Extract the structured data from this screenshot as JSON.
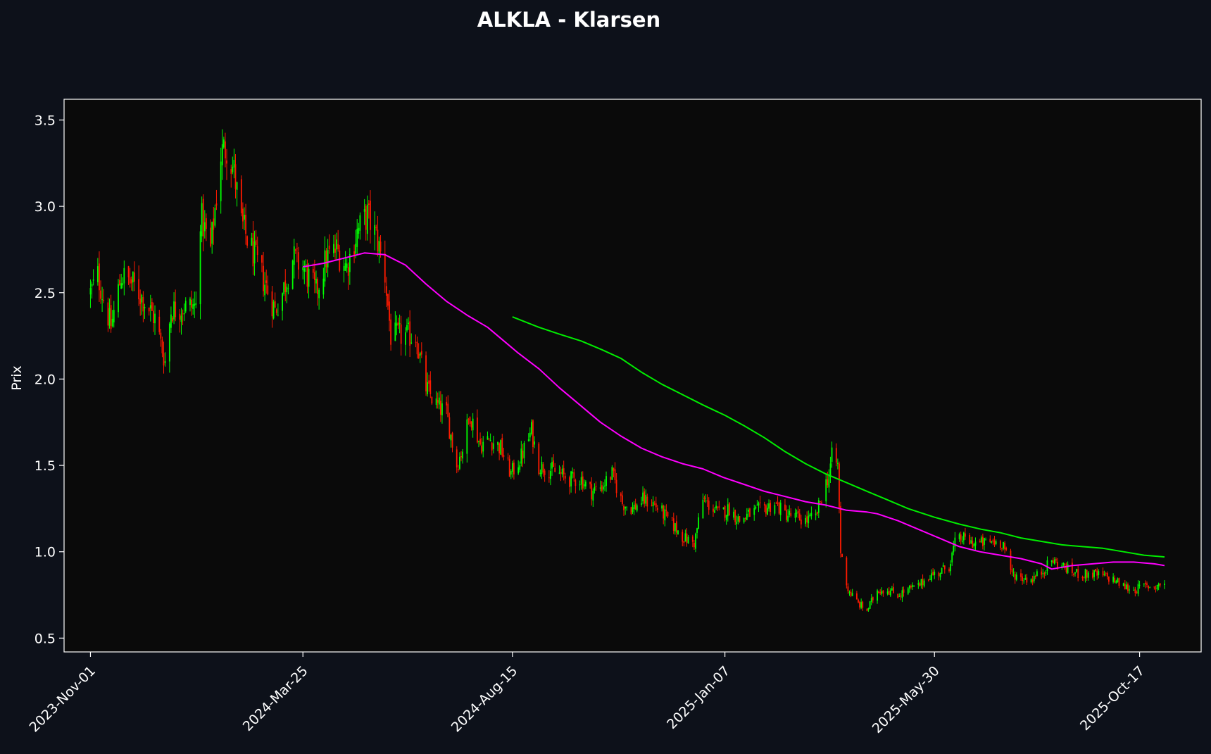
{
  "colors": {
    "page_background": "#0d111a",
    "plot_background": "#0a0a0a",
    "frame": "#ffffff",
    "text": "#ffffff",
    "candle_up": "#00ff00",
    "candle_down": "#ff1a00",
    "ma_fast": "#ff00ff",
    "ma_slow": "#00ee00"
  },
  "chart_data": {
    "type": "candlestick",
    "title": "ALKLA - Klarsen",
    "xlabel": "",
    "ylabel": "Prix",
    "x_range": [
      "2023-10-14",
      "2025-11-28"
    ],
    "ylim": [
      0.42,
      3.62
    ],
    "y_ticks": [
      0.5,
      1.0,
      1.5,
      2.0,
      2.5,
      3.0,
      3.5
    ],
    "y_tick_labels": [
      "0.5",
      "1.0",
      "1.5",
      "2.0",
      "2.5",
      "3.0",
      "3.5"
    ],
    "x_ticks": [
      "2023-11-01",
      "2024-03-25",
      "2024-08-15",
      "2025-01-07",
      "2025-05-30",
      "2025-10-17"
    ],
    "x_tick_labels": [
      "2023-Nov-01",
      "2024-Mar-25",
      "2024-Aug-15",
      "2025-Jan-07",
      "2025-May-30",
      "2025-Oct-17"
    ],
    "grid": false,
    "legend": "none",
    "candles": {
      "trading_days": "Mon-Fri",
      "date_range": [
        "2023-11-01",
        "2025-11-03"
      ],
      "approx_close_path": [
        [
          "2023-11-01",
          2.5
        ],
        [
          "2023-11-06",
          2.6
        ],
        [
          "2023-11-15",
          2.3
        ],
        [
          "2023-11-22",
          2.6
        ],
        [
          "2023-11-30",
          2.55
        ],
        [
          "2023-12-08",
          2.45
        ],
        [
          "2023-12-15",
          2.35
        ],
        [
          "2023-12-22",
          2.1
        ],
        [
          "2023-12-26",
          2.4
        ],
        [
          "2024-01-05",
          2.42
        ],
        [
          "2024-01-12",
          2.42
        ],
        [
          "2024-01-15",
          2.95
        ],
        [
          "2024-01-22",
          2.75
        ],
        [
          "2024-01-29",
          3.3
        ],
        [
          "2024-02-02",
          3.35
        ],
        [
          "2024-02-07",
          3.2
        ],
        [
          "2024-02-12",
          2.9
        ],
        [
          "2024-02-19",
          2.75
        ],
        [
          "2024-02-26",
          2.6
        ],
        [
          "2024-03-06",
          2.4
        ],
        [
          "2024-03-11",
          2.5
        ],
        [
          "2024-03-18",
          2.7
        ],
        [
          "2024-03-25",
          2.65
        ],
        [
          "2024-04-03",
          2.5
        ],
        [
          "2024-04-10",
          2.7
        ],
        [
          "2024-04-17",
          2.75
        ],
        [
          "2024-04-24",
          2.65
        ],
        [
          "2024-05-01",
          2.85
        ],
        [
          "2024-05-08",
          2.95
        ],
        [
          "2024-05-15",
          2.8
        ],
        [
          "2024-05-20",
          2.6
        ],
        [
          "2024-05-24",
          2.25
        ],
        [
          "2024-06-03",
          2.25
        ],
        [
          "2024-06-10",
          2.25
        ],
        [
          "2024-06-17",
          1.95
        ],
        [
          "2024-06-24",
          1.85
        ],
        [
          "2024-07-01",
          1.8
        ],
        [
          "2024-07-08",
          1.5
        ],
        [
          "2024-07-12",
          1.6
        ],
        [
          "2024-07-17",
          1.8
        ],
        [
          "2024-07-24",
          1.62
        ],
        [
          "2024-07-31",
          1.65
        ],
        [
          "2024-08-07",
          1.6
        ],
        [
          "2024-08-14",
          1.45
        ],
        [
          "2024-08-21",
          1.55
        ],
        [
          "2024-08-28",
          1.7
        ],
        [
          "2024-09-02",
          1.5
        ],
        [
          "2024-09-09",
          1.48
        ],
        [
          "2024-09-16",
          1.45
        ],
        [
          "2024-09-23",
          1.42
        ],
        [
          "2024-10-01",
          1.42
        ],
        [
          "2024-10-08",
          1.35
        ],
        [
          "2024-10-15",
          1.38
        ],
        [
          "2024-10-22",
          1.45
        ],
        [
          "2024-10-29",
          1.28
        ],
        [
          "2024-11-05",
          1.25
        ],
        [
          "2024-11-12",
          1.3
        ],
        [
          "2024-11-19",
          1.28
        ],
        [
          "2024-11-26",
          1.22
        ],
        [
          "2024-12-03",
          1.15
        ],
        [
          "2024-12-10",
          1.08
        ],
        [
          "2024-12-17",
          1.05
        ],
        [
          "2024-12-23",
          1.3
        ],
        [
          "2025-01-03",
          1.22
        ],
        [
          "2025-01-10",
          1.25
        ],
        [
          "2025-01-17",
          1.18
        ],
        [
          "2025-01-24",
          1.22
        ],
        [
          "2025-02-03",
          1.25
        ],
        [
          "2025-02-10",
          1.28
        ],
        [
          "2025-02-17",
          1.22
        ],
        [
          "2025-02-24",
          1.2
        ],
        [
          "2025-03-03",
          1.18
        ],
        [
          "2025-03-10",
          1.2
        ],
        [
          "2025-03-14",
          1.32
        ],
        [
          "2025-03-19",
          1.45
        ],
        [
          "2025-03-21",
          1.55
        ],
        [
          "2025-03-25",
          1.5
        ],
        [
          "2025-03-27",
          1.0
        ],
        [
          "2025-04-01",
          0.78
        ],
        [
          "2025-04-08",
          0.7
        ],
        [
          "2025-04-14",
          0.66
        ],
        [
          "2025-04-21",
          0.78
        ],
        [
          "2025-04-28",
          0.78
        ],
        [
          "2025-05-05",
          0.75
        ],
        [
          "2025-05-12",
          0.78
        ],
        [
          "2025-05-19",
          0.8
        ],
        [
          "2025-05-26",
          0.86
        ],
        [
          "2025-06-02",
          0.88
        ],
        [
          "2025-06-09",
          0.92
        ],
        [
          "2025-06-13",
          1.05
        ],
        [
          "2025-06-18",
          1.08
        ],
        [
          "2025-06-25",
          1.05
        ],
        [
          "2025-07-02",
          1.05
        ],
        [
          "2025-07-09",
          1.06
        ],
        [
          "2025-07-16",
          1.05
        ],
        [
          "2025-07-21",
          0.88
        ],
        [
          "2025-07-28",
          0.85
        ],
        [
          "2025-08-04",
          0.84
        ],
        [
          "2025-08-11",
          0.88
        ],
        [
          "2025-08-18",
          0.95
        ],
        [
          "2025-08-25",
          0.92
        ],
        [
          "2025-09-01",
          0.88
        ],
        [
          "2025-09-08",
          0.87
        ],
        [
          "2025-09-15",
          0.87
        ],
        [
          "2025-09-22",
          0.86
        ],
        [
          "2025-09-29",
          0.84
        ],
        [
          "2025-10-06",
          0.8
        ],
        [
          "2025-10-13",
          0.78
        ],
        [
          "2025-10-20",
          0.8
        ],
        [
          "2025-10-27",
          0.8
        ],
        [
          "2025-11-03",
          0.82
        ]
      ]
    },
    "series": [
      {
        "type": "line",
        "color": "#ff00ff",
        "points": [
          [
            "2024-03-25",
            2.65
          ],
          [
            "2024-04-08",
            2.67
          ],
          [
            "2024-04-22",
            2.7
          ],
          [
            "2024-05-06",
            2.73
          ],
          [
            "2024-05-20",
            2.72
          ],
          [
            "2024-06-03",
            2.66
          ],
          [
            "2024-06-17",
            2.55
          ],
          [
            "2024-07-01",
            2.45
          ],
          [
            "2024-07-15",
            2.37
          ],
          [
            "2024-07-29",
            2.3
          ],
          [
            "2024-08-12",
            2.2
          ],
          [
            "2024-08-19",
            2.15
          ],
          [
            "2024-09-02",
            2.06
          ],
          [
            "2024-09-16",
            1.95
          ],
          [
            "2024-09-30",
            1.85
          ],
          [
            "2024-10-14",
            1.75
          ],
          [
            "2024-10-28",
            1.67
          ],
          [
            "2024-11-11",
            1.6
          ],
          [
            "2024-11-25",
            1.55
          ],
          [
            "2024-12-09",
            1.51
          ],
          [
            "2024-12-23",
            1.48
          ],
          [
            "2025-01-06",
            1.43
          ],
          [
            "2025-01-20",
            1.39
          ],
          [
            "2025-02-03",
            1.35
          ],
          [
            "2025-02-17",
            1.32
          ],
          [
            "2025-03-03",
            1.29
          ],
          [
            "2025-03-17",
            1.27
          ],
          [
            "2025-03-31",
            1.24
          ],
          [
            "2025-04-14",
            1.23
          ],
          [
            "2025-04-21",
            1.22
          ],
          [
            "2025-05-05",
            1.18
          ],
          [
            "2025-05-19",
            1.13
          ],
          [
            "2025-06-02",
            1.08
          ],
          [
            "2025-06-16",
            1.03
          ],
          [
            "2025-06-30",
            1.0
          ],
          [
            "2025-07-14",
            0.98
          ],
          [
            "2025-07-28",
            0.96
          ],
          [
            "2025-08-11",
            0.93
          ],
          [
            "2025-08-18",
            0.9
          ],
          [
            "2025-09-01",
            0.92
          ],
          [
            "2025-09-15",
            0.93
          ],
          [
            "2025-09-29",
            0.94
          ],
          [
            "2025-10-13",
            0.94
          ],
          [
            "2025-10-27",
            0.93
          ],
          [
            "2025-11-03",
            0.92
          ]
        ]
      },
      {
        "type": "line",
        "color": "#00ee00",
        "points": [
          [
            "2024-08-15",
            2.36
          ],
          [
            "2024-09-02",
            2.3
          ],
          [
            "2024-09-16",
            2.26
          ],
          [
            "2024-10-01",
            2.22
          ],
          [
            "2024-10-15",
            2.17
          ],
          [
            "2024-10-28",
            2.12
          ],
          [
            "2024-11-11",
            2.04
          ],
          [
            "2024-11-25",
            1.97
          ],
          [
            "2024-12-09",
            1.91
          ],
          [
            "2024-12-23",
            1.85
          ],
          [
            "2025-01-07",
            1.79
          ],
          [
            "2025-01-20",
            1.73
          ],
          [
            "2025-02-03",
            1.66
          ],
          [
            "2025-02-17",
            1.58
          ],
          [
            "2025-03-03",
            1.51
          ],
          [
            "2025-03-17",
            1.45
          ],
          [
            "2025-03-31",
            1.4
          ],
          [
            "2025-04-14",
            1.35
          ],
          [
            "2025-04-28",
            1.3
          ],
          [
            "2025-05-12",
            1.25
          ],
          [
            "2025-05-30",
            1.2
          ],
          [
            "2025-06-16",
            1.16
          ],
          [
            "2025-07-01",
            1.13
          ],
          [
            "2025-07-14",
            1.11
          ],
          [
            "2025-07-28",
            1.08
          ],
          [
            "2025-08-11",
            1.06
          ],
          [
            "2025-08-25",
            1.04
          ],
          [
            "2025-09-08",
            1.03
          ],
          [
            "2025-09-22",
            1.02
          ],
          [
            "2025-10-06",
            1.0
          ],
          [
            "2025-10-20",
            0.98
          ],
          [
            "2025-11-03",
            0.97
          ]
        ]
      }
    ]
  }
}
